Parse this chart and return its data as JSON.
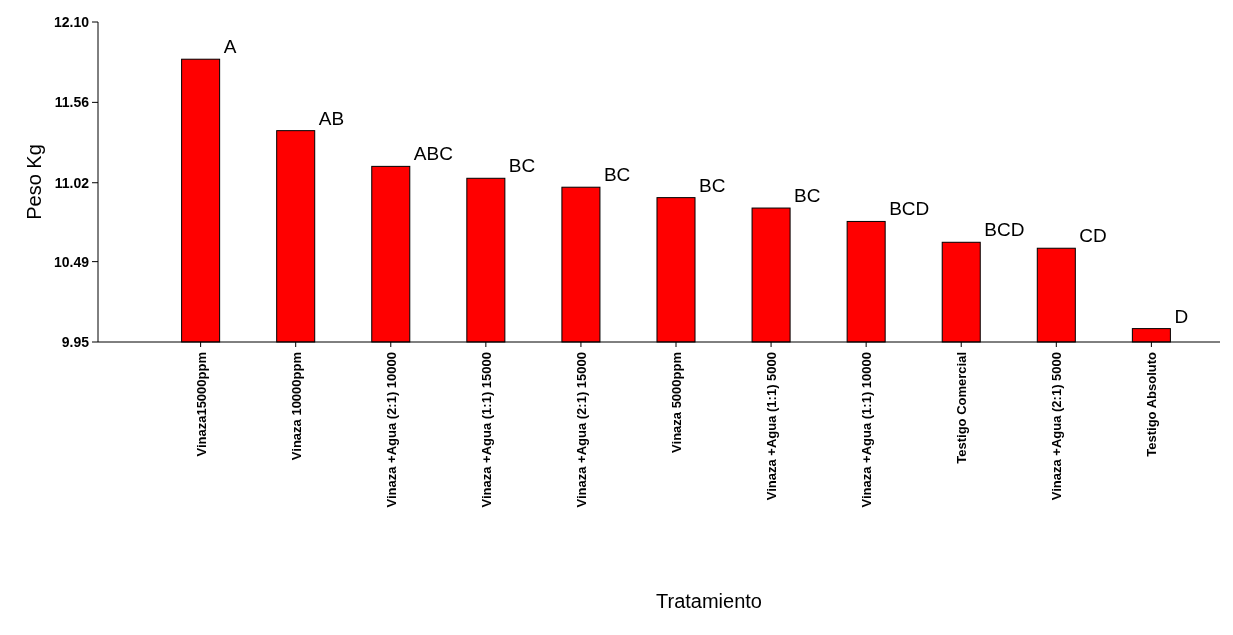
{
  "chart_data": {
    "type": "bar",
    "xlabel": "Tratamiento",
    "ylabel": "Peso Kg",
    "categories": [
      "Vinaza15000ppm",
      "Vinaza 10000ppm",
      "Vinaza +Agua (2:1) 10000",
      "Vinaza +Agua (1:1) 15000",
      "Vinaza +Agua (2:1) 15000",
      "Vinaza 5000ppm",
      "Vinaza +Agua (1:1) 5000",
      "Vinaza +Agua (1:1) 10000",
      "Testigo Comercial",
      "Vinaza +Agua (2:1) 5000",
      "Testigo Absoluto"
    ],
    "values": [
      11.85,
      11.37,
      11.13,
      11.05,
      10.99,
      10.92,
      10.85,
      10.76,
      10.62,
      10.58,
      10.04
    ],
    "color": "#ff0000",
    "ylim": [
      9.95,
      12.1
    ],
    "yticks": [
      9.95,
      10.49,
      11.02,
      11.56,
      {
        "value": 12.1,
        "label": "12.10"
      }
    ],
    "grid": false,
    "annotations": [
      {
        "text": "A",
        "x": "Vinaza15000ppm",
        "y": 11.85
      },
      {
        "text": "AB",
        "x": "Vinaza 10000ppm",
        "y": 11.37
      },
      {
        "text": "ABC",
        "x": "Vinaza +Agua (2:1) 10000",
        "y": 11.13
      },
      {
        "text": "BC",
        "x": "Vinaza +Agua (1:1) 15000",
        "y": 11.05
      },
      {
        "text": "BC",
        "x": "Vinaza +Agua (2:1) 15000",
        "y": 10.99
      },
      {
        "text": "BC",
        "x": "Vinaza 5000ppm",
        "y": 10.92
      },
      {
        "text": "BC",
        "x": "Vinaza +Agua (1:1) 5000",
        "y": 10.85
      },
      {
        "text": "BCD",
        "x": "Vinaza +Agua (1:1) 10000",
        "y": 10.76
      },
      {
        "text": "BCD",
        "x": "Testigo Comercial",
        "y": 10.62
      },
      {
        "text": "CD",
        "x": "Vinaza +Agua (2:1) 5000",
        "y": 10.58
      },
      {
        "text": "D",
        "x": "Testigo Absoluto",
        "y": 10.04
      }
    ]
  }
}
